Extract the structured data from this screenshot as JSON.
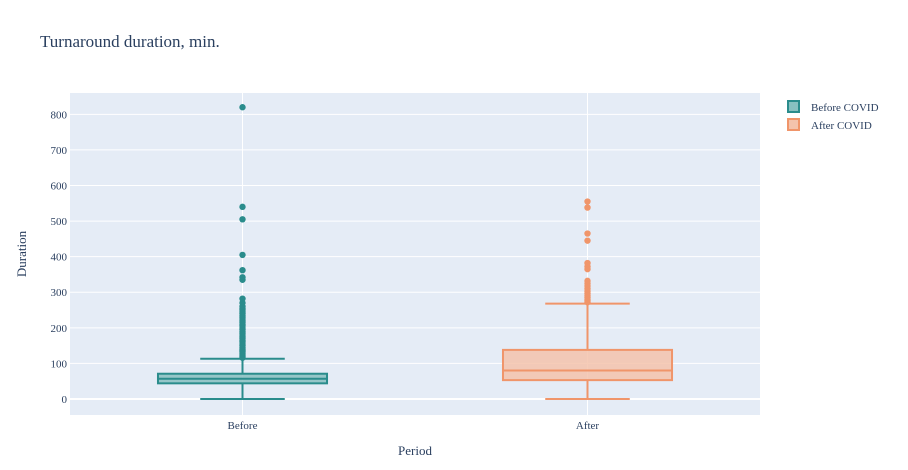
{
  "chart_data": {
    "type": "box",
    "title": "Turnaround duration, min.",
    "xlabel": "Period",
    "ylabel": "Duration",
    "categories": [
      "Before",
      "After"
    ],
    "ylim": [
      -45,
      860
    ],
    "yticks": [
      0,
      100,
      200,
      300,
      400,
      500,
      600,
      700,
      800
    ],
    "series": [
      {
        "name": "Before COVID",
        "category": "Before",
        "color": "#2a8c8c",
        "fill": "#87c0c0",
        "min": 0,
        "q1": 44,
        "median": 57,
        "q3": 71,
        "upper_whisker": 113,
        "outliers": [
          116,
          120,
          124,
          128,
          132,
          136,
          140,
          145,
          150,
          155,
          160,
          165,
          170,
          175,
          180,
          185,
          190,
          195,
          200,
          205,
          210,
          215,
          220,
          225,
          230,
          235,
          240,
          245,
          250,
          255,
          260,
          270,
          282,
          335,
          342,
          362,
          405,
          505,
          540,
          820
        ]
      },
      {
        "name": "After COVID",
        "category": "After",
        "color": "#f0956a",
        "fill": "#f4c3ac",
        "min": 0,
        "q1": 53,
        "median": 80,
        "q3": 138,
        "upper_whisker": 268,
        "outliers": [
          272,
          276,
          280,
          285,
          290,
          296,
          302,
          310,
          318,
          325,
          332,
          365,
          372,
          382,
          445,
          465,
          538,
          555
        ]
      }
    ]
  }
}
